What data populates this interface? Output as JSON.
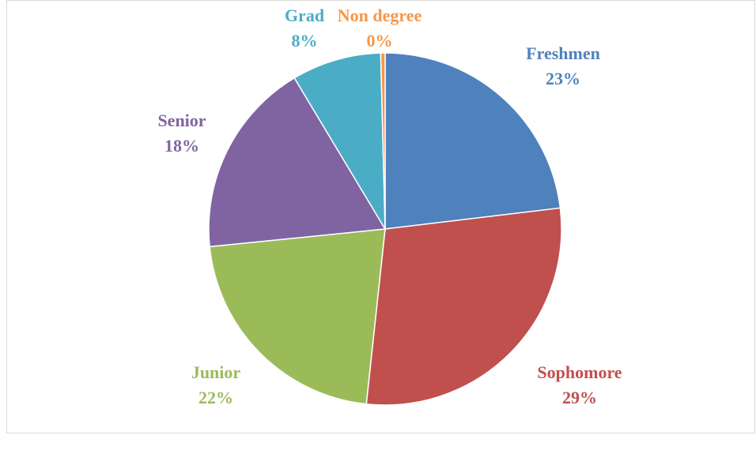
{
  "chart_data": {
    "type": "pie",
    "categories": [
      "Freshmen",
      "Sophomore",
      "Junior",
      "Senior",
      "Grad",
      "Non degree"
    ],
    "values": [
      23.1,
      28.6,
      21.7,
      18,
      8.2,
      0.4
    ],
    "value_labels": [
      "23%",
      "29%",
      "22%",
      "18%",
      "8%",
      "0%"
    ],
    "colors": [
      "#4f81bd",
      "#c0504d",
      "#9bbb59",
      "#8064a2",
      "#4bacc6",
      "#f79646"
    ]
  }
}
